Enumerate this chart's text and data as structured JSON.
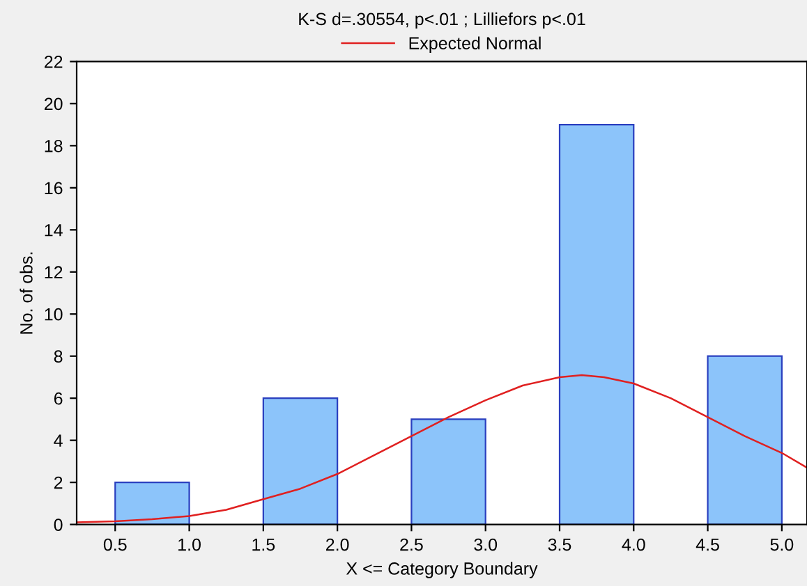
{
  "chart_data": {
    "type": "histogram",
    "title": "K-S d=.30554, p<.01 ; Lilliefors p<.01",
    "xlabel": "X <= Category Boundary",
    "ylabel": "No. of obs.",
    "bins": [
      0.5,
      1.0,
      1.5,
      2.0,
      2.5,
      3.0,
      3.5,
      4.0,
      4.5,
      5.0
    ],
    "values": [
      2,
      0,
      6,
      0,
      5,
      0,
      19,
      0,
      8
    ],
    "color": "#8cc4fa",
    "series": [
      {
        "name": "Expected Normal",
        "type": "line",
        "color": "#e02020",
        "x": [
          0.24,
          0.5,
          0.75,
          1.0,
          1.25,
          1.5,
          1.75,
          2.0,
          2.25,
          2.5,
          2.75,
          3.0,
          3.25,
          3.5,
          3.65,
          3.8,
          4.0,
          4.25,
          4.5,
          4.75,
          5.0,
          5.17
        ],
        "values": [
          0.1,
          0.15,
          0.25,
          0.4,
          0.7,
          1.2,
          1.7,
          2.4,
          3.3,
          4.2,
          5.1,
          5.9,
          6.6,
          7.0,
          7.1,
          7.0,
          6.7,
          6.0,
          5.1,
          4.2,
          3.4,
          2.7
        ]
      }
    ],
    "xlim": [
      0.24,
      5.17
    ],
    "xticks": [
      {
        "value": 0.5,
        "label": "0.5"
      },
      {
        "value": 1.0,
        "label": "1.0"
      },
      {
        "value": 1.5,
        "label": "1.5"
      },
      {
        "value": 2.0,
        "label": "2.0"
      },
      {
        "value": 2.5,
        "label": "2.5"
      },
      {
        "value": 3.0,
        "label": "3.0"
      },
      {
        "value": 3.5,
        "label": "3.5"
      },
      {
        "value": 4.0,
        "label": "4.0"
      },
      {
        "value": 4.5,
        "label": "4.5"
      },
      {
        "value": 5.0,
        "label": "5.0"
      }
    ],
    "ylim": [
      0,
      22
    ],
    "yticks": [
      0,
      2,
      4,
      6,
      8,
      10,
      12,
      14,
      16,
      18,
      20,
      22
    ],
    "grid": false,
    "legend": "top"
  }
}
